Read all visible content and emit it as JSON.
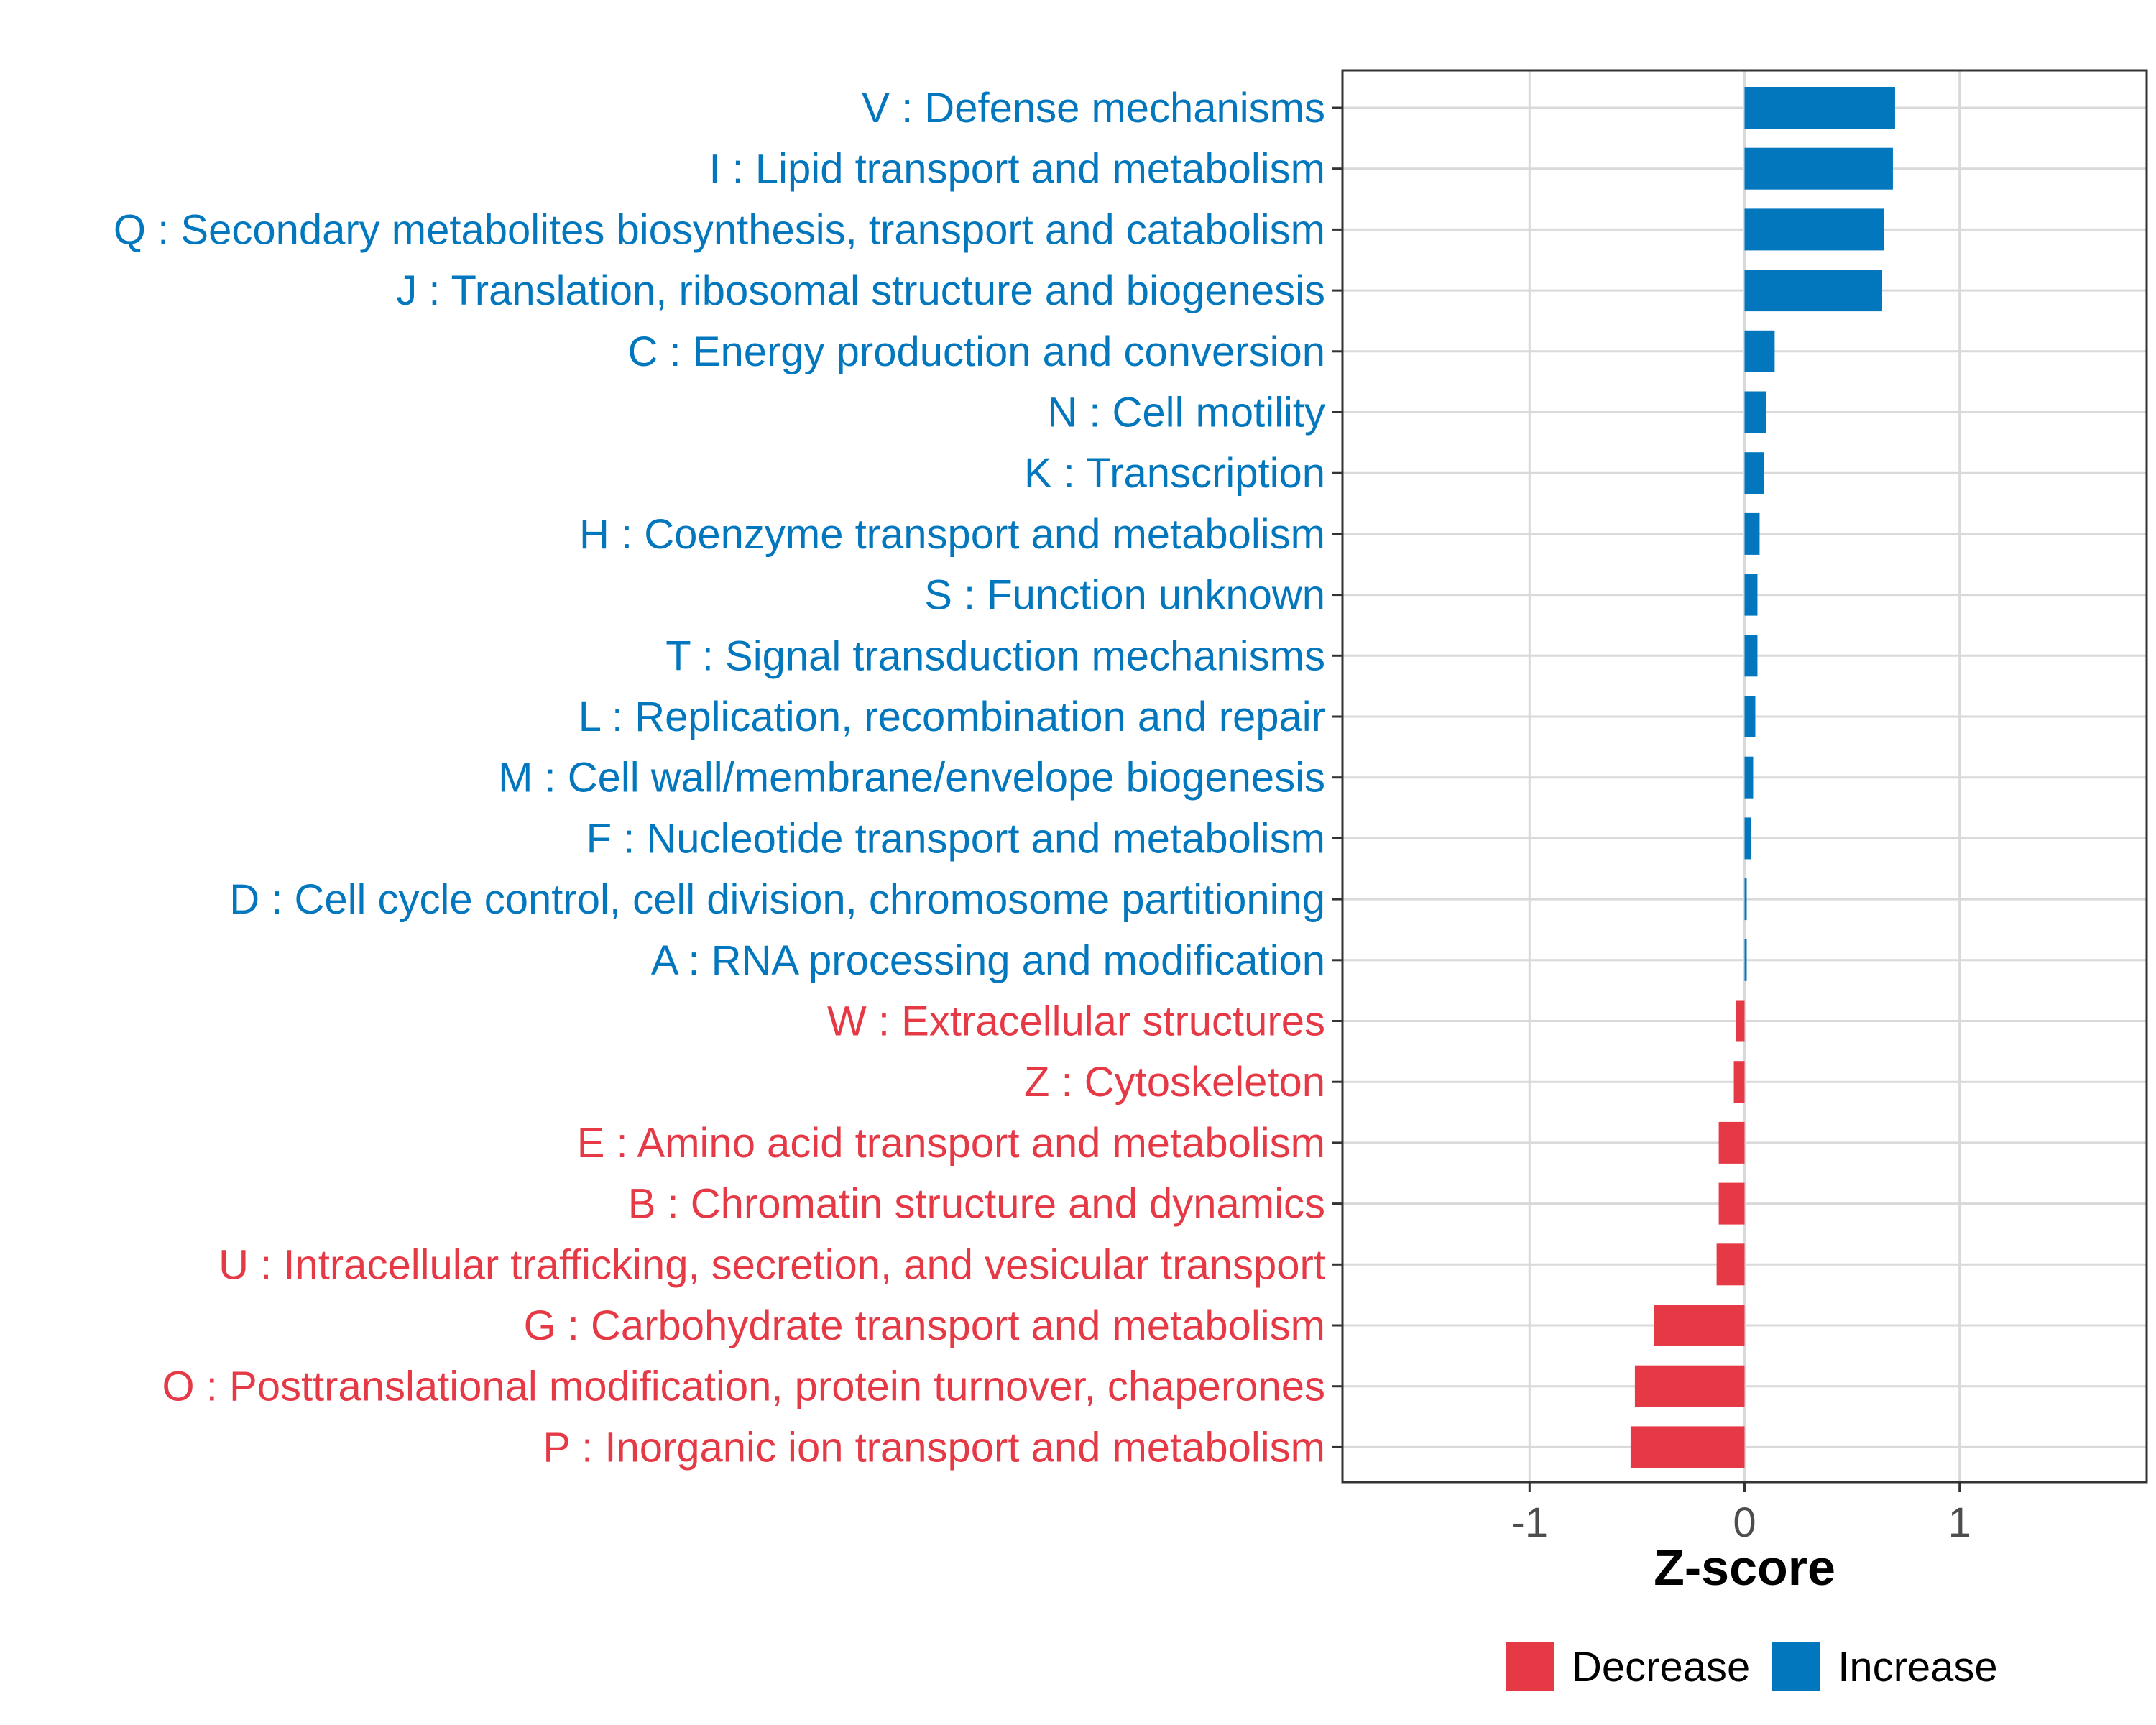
{
  "colors": {
    "increase": "#0277bd",
    "decrease": "#e63946",
    "grid": "#d9d9d9",
    "axis_text": "#4d4d4d"
  },
  "legend": {
    "decrease_label": "Decrease",
    "increase_label": "Increase"
  },
  "chart_data": {
    "type": "bar",
    "orientation": "horizontal",
    "title": "",
    "xlabel": "Z-score",
    "ylabel": "",
    "xlim": [
      -1.87,
      1.87
    ],
    "xticks": [
      -1,
      0,
      1
    ],
    "xtick_labels": [
      "-1",
      "0",
      "1"
    ],
    "grid": true,
    "legend_position": "bottom",
    "categories": [
      "V : Defense mechanisms",
      "I : Lipid transport and metabolism",
      "Q : Secondary metabolites biosynthesis, transport and catabolism",
      "J : Translation, ribosomal structure and biogenesis",
      "C : Energy production and conversion",
      "N : Cell motility",
      "K : Transcription",
      "H : Coenzyme transport and metabolism",
      "S : Function unknown",
      "T : Signal transduction mechanisms",
      "L : Replication, recombination and repair",
      "M : Cell wall/membrane/envelope biogenesis",
      "F : Nucleotide transport and metabolism",
      "D : Cell cycle control, cell division, chromosome partitioning",
      "A : RNA processing and modification",
      "W : Extracellular structures",
      "Z : Cytoskeleton",
      "E : Amino acid transport and metabolism",
      "B : Chromatin structure and dynamics",
      "U : Intracellular trafficking, secretion, and vesicular transport",
      "G : Carbohydrate transport and metabolism",
      "O : Posttranslational modification, protein turnover, chaperones",
      "P : Inorganic ion transport and metabolism"
    ],
    "values": [
      0.7,
      0.69,
      0.65,
      0.64,
      0.14,
      0.1,
      0.09,
      0.07,
      0.06,
      0.06,
      0.05,
      0.04,
      0.03,
      0.01,
      0.01,
      -0.04,
      -0.05,
      -0.12,
      -0.12,
      -0.13,
      -0.42,
      -0.51,
      -0.53
    ],
    "groups": [
      "Increase",
      "Increase",
      "Increase",
      "Increase",
      "Increase",
      "Increase",
      "Increase",
      "Increase",
      "Increase",
      "Increase",
      "Increase",
      "Increase",
      "Increase",
      "Increase",
      "Increase",
      "Decrease",
      "Decrease",
      "Decrease",
      "Decrease",
      "Decrease",
      "Decrease",
      "Decrease",
      "Decrease"
    ]
  }
}
